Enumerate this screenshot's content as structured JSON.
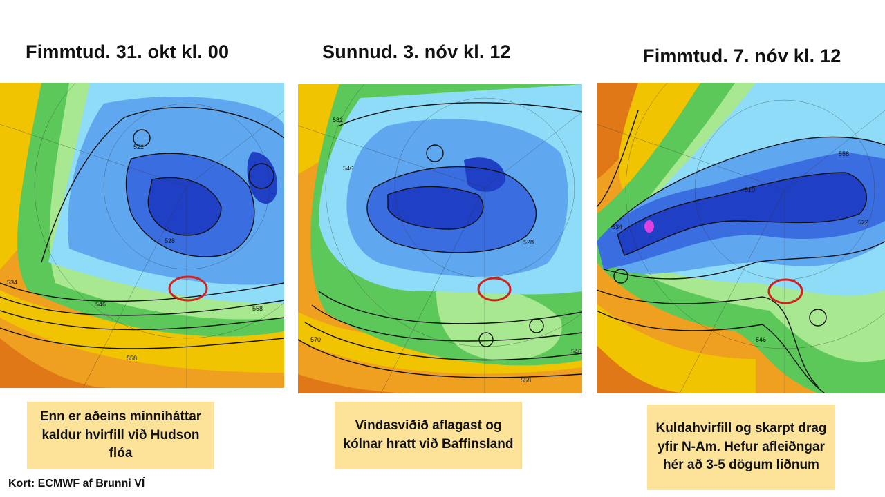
{
  "panels": [
    {
      "title": "Fimmtud. 31. okt kl. 00",
      "caption": "Enn er aðeins minniháttar kaldur hvirfill við Hudson flóa",
      "contour_labels": [
        "522",
        "528",
        "534",
        "546",
        "558",
        "558"
      ]
    },
    {
      "title": "Sunnud. 3. nóv kl. 12",
      "caption": "Vindasviðið aflagast og kólnar hratt við Baffinsland",
      "contour_labels": [
        "582",
        "546",
        "528",
        "570",
        "558",
        "546"
      ]
    },
    {
      "title": "Fimmtud. 7. nóv kl. 12",
      "caption": "Kuldahvirfill og skarpt drag yfir N-Am. Hefur afleiðngar hér að 3-5 dögum liðnum",
      "contour_labels": [
        "534",
        "510",
        "522",
        "546",
        "558"
      ]
    }
  ],
  "credit": "Kort: ECMWF af Brunni VÍ",
  "colors": {
    "deep_blue": "#1f3fc4",
    "blue": "#3a6ee0",
    "light_blue": "#5fa8f0",
    "cyan": "#8fdcf8",
    "green": "#5cc85a",
    "light_green": "#a8e890",
    "yellow": "#f0c400",
    "orange": "#f0a020",
    "dark_orange": "#e07818",
    "marker": "#d02020"
  }
}
